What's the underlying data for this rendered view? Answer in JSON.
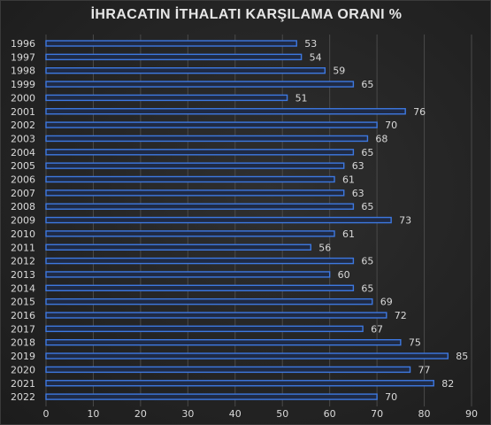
{
  "chart_data": {
    "type": "bar",
    "orientation": "horizontal",
    "title": "İHRACATIN İTHALATI KARŞILAMA ORANI %",
    "xlabel": "",
    "ylabel": "",
    "categories": [
      "1996",
      "1997",
      "1998",
      "1999",
      "2000",
      "2001",
      "2002",
      "2003",
      "2004",
      "2005",
      "2006",
      "2007",
      "2008",
      "2009",
      "2010",
      "2011",
      "2012",
      "2013",
      "2014",
      "2015",
      "2016",
      "2017",
      "2018",
      "2019",
      "2020",
      "2021",
      "2022"
    ],
    "values": [
      53,
      54,
      59,
      65,
      51,
      76,
      70,
      68,
      65,
      63,
      61,
      63,
      65,
      73,
      61,
      56,
      65,
      60,
      65,
      69,
      72,
      67,
      75,
      85,
      77,
      82,
      70
    ],
    "xlim": [
      0,
      90
    ],
    "xticks": [
      0,
      10,
      20,
      30,
      40,
      50,
      60,
      70,
      80,
      90
    ],
    "grid": "vertical",
    "legend": "none",
    "bar_fill": "#1f2a44",
    "bar_stroke": "#3d78e0",
    "gridline_color": "#4a4a4a",
    "text_color": "#d9d9d9"
  }
}
